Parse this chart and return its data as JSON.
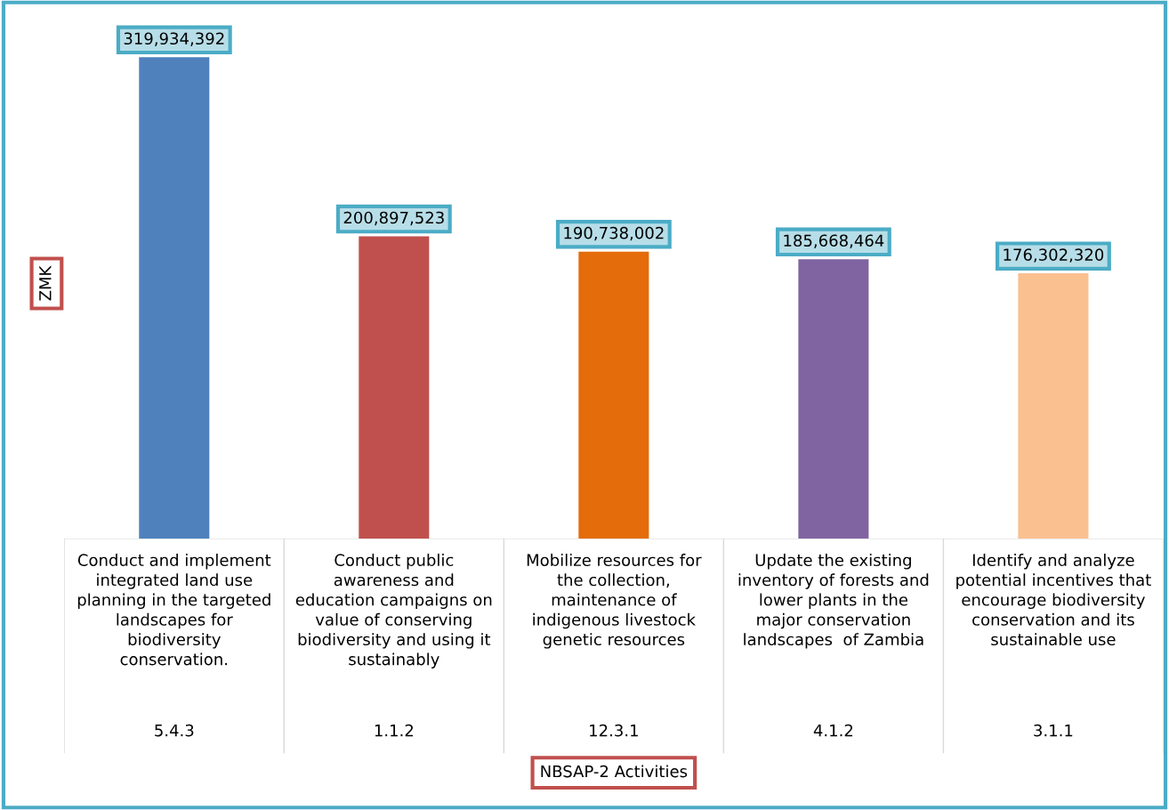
{
  "chart_data": {
    "type": "bar",
    "annotations": [
      "NBSAP-2 Activities"
    ],
    "ylabel": "ZMK",
    "categories": [
      "Conduct and implement\nintegrated land use\nplanning in the targeted\nlandscapes for\nbiodiversity\nconservation.\n5.4.3",
      "Conduct public\nawareness and\neducation campaigns on\nvalue of conserving\nbiodiversity and using it\nsustainably\n1.1.2",
      "Mobilize resources for\nthe collection,\nmaintenance of\nindigenous livestock\ngenetic resources\n12.3.1",
      "Update the existing\ninventory of forests and\nlower plants in the\nmajor conservation\nlandscapes  of Zambia\n4.1.2",
      "Identify and analyze\npotential incentives that\nencourage biodiversity\nconservation and its\nsustainable use\n3.1.1"
    ],
    "values": [
      319934392,
      200897523,
      190738002,
      185668464,
      176302320
    ],
    "colors": [
      "#4f81bd",
      "#c0504d",
      "#e46c0a",
      "#8064a2",
      "#fac090"
    ],
    "value_labels": [
      "319,934,392",
      "200,897,523",
      "190,738,002",
      "185,668,464",
      "176,302,320"
    ]
  }
}
